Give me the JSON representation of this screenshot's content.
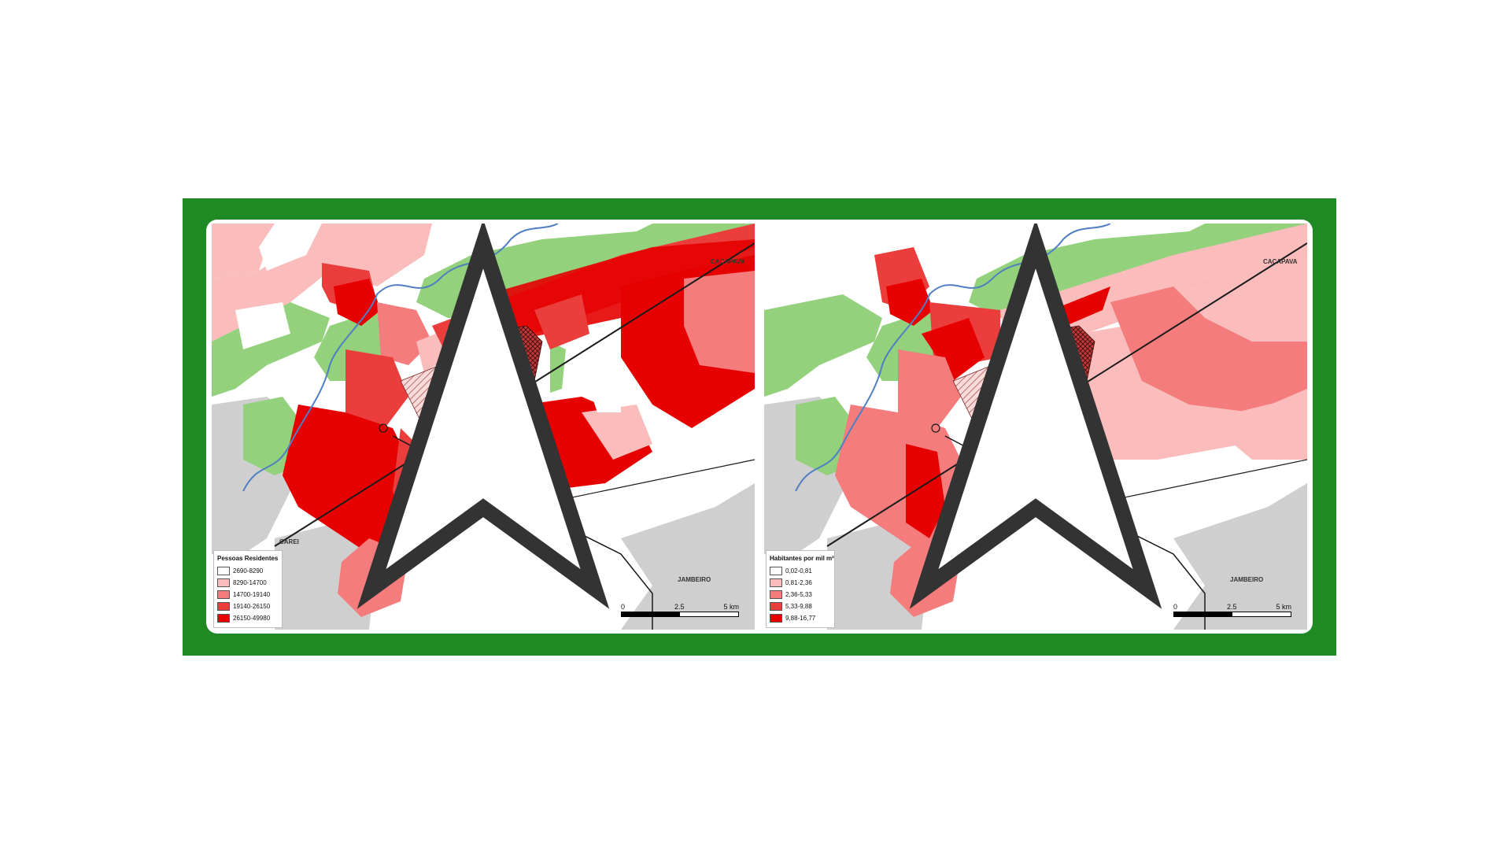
{
  "maps": [
    {
      "legend": {
        "title": "Pessoas Residentes",
        "classes": [
          {
            "label": "2690-8290",
            "color": "#ffffff"
          },
          {
            "label": "8290-14700",
            "color": "#fbbcbc"
          },
          {
            "label": "14700-19140",
            "color": "#f47c7c"
          },
          {
            "label": "19140-26150",
            "color": "#ec3d3d"
          },
          {
            "label": "26150-49980",
            "color": "#e60000"
          }
        ]
      },
      "scale": {
        "ticks": [
          "0",
          "2.5",
          "5 km"
        ]
      },
      "places": {
        "cacapava": "CAÇAPAVA",
        "jambeiro": "JAMBEIRO",
        "carei": "CAREI"
      }
    },
    {
      "legend": {
        "title": "Habitantes por mil m²",
        "classes": [
          {
            "label": "0,02-0,81",
            "color": "#ffffff"
          },
          {
            "label": "0,81-2,36",
            "color": "#fbbcbc"
          },
          {
            "label": "2,36-5,33",
            "color": "#f47c7c"
          },
          {
            "label": "5,33-9,88",
            "color": "#ec3d3d"
          },
          {
            "label": "9,88-16,77",
            "color": "#e60000"
          }
        ]
      },
      "scale": {
        "ticks": [
          "0",
          "2.5",
          "5 km"
        ]
      },
      "places": {
        "cacapava": "CAÇAPAVA",
        "jambeiro": "JAMBEIRO"
      }
    }
  ],
  "colors": {
    "frame": "#1f8a24",
    "green_area": "#93d17d",
    "outside_gray": "#cfcfcf",
    "river": "#4f7fc2",
    "road": "#1a1a1a"
  }
}
